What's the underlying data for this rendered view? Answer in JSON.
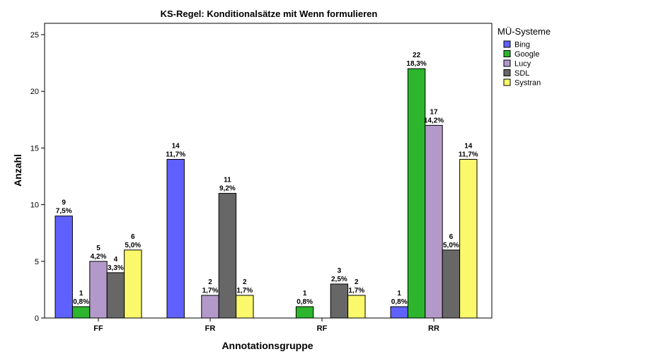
{
  "chart_data": {
    "type": "bar",
    "title": "KS-Regel: Konditionalsätze mit Wenn formulieren",
    "xlabel": "Annotationsgruppe",
    "ylabel": "Anzahl",
    "categories": [
      "FF",
      "FR",
      "RF",
      "RR"
    ],
    "ylim": [
      0,
      26
    ],
    "yticks": [
      "0",
      "5",
      "10",
      "15",
      "20",
      "25"
    ],
    "legend_title": "MÜ-Systeme",
    "legend_position": "right",
    "grid": false,
    "series": [
      {
        "name": "Bing",
        "color": "#5f61ff",
        "values": [
          9,
          14,
          0,
          1
        ],
        "counts": [
          "9",
          "14",
          "",
          "1"
        ],
        "percents": [
          "7,5%",
          "11,7%",
          "",
          "0,8%"
        ]
      },
      {
        "name": "Google",
        "color": "#2db52d",
        "values": [
          1,
          0,
          1,
          22
        ],
        "counts": [
          "1",
          "",
          "1",
          "22"
        ],
        "percents": [
          "0,8%",
          "",
          "0,8%",
          "18,3%"
        ]
      },
      {
        "name": "Lucy",
        "color": "#b399c9",
        "values": [
          5,
          2,
          0,
          17
        ],
        "counts": [
          "5",
          "2",
          "",
          "17"
        ],
        "percents": [
          "4,2%",
          "1,7%",
          "",
          "14,2%"
        ]
      },
      {
        "name": "SDL",
        "color": "#676767",
        "values": [
          4,
          11,
          3,
          6
        ],
        "counts": [
          "4",
          "11",
          "3",
          "6"
        ],
        "percents": [
          "3,3%",
          "9,2%",
          "2,5%",
          "5,0%"
        ]
      },
      {
        "name": "Systran",
        "color": "#f9f96b",
        "values": [
          6,
          2,
          2,
          14
        ],
        "counts": [
          "6",
          "2",
          "2",
          "14"
        ],
        "percents": [
          "5,0%",
          "1,7%",
          "1,7%",
          "11,7%"
        ]
      }
    ]
  }
}
